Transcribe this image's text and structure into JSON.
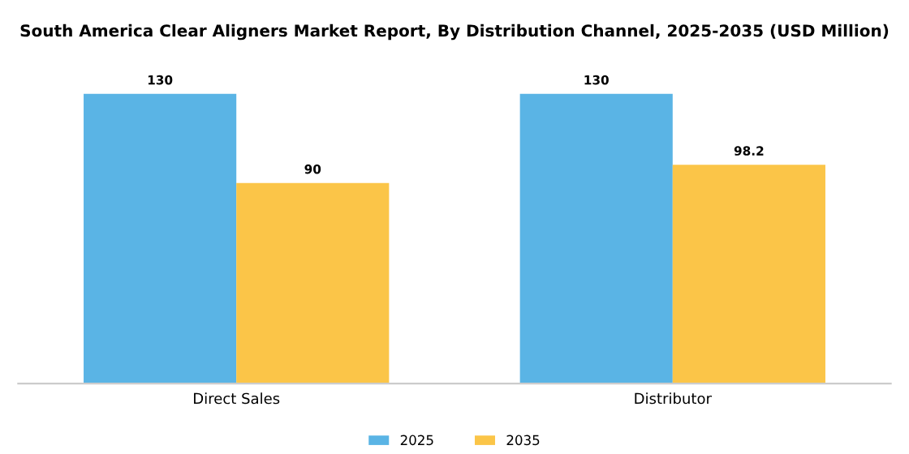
{
  "chart_data": {
    "type": "bar",
    "title": "South America Clear Aligners Market Report, By Distribution Channel, 2025-2035 (USD Million)",
    "categories": [
      "Direct Sales",
      "Distributor"
    ],
    "series": [
      {
        "name": "2025",
        "color": "#5ab4e5",
        "values": [
          130,
          130
        ]
      },
      {
        "name": "2035",
        "color": "#fbc548",
        "values": [
          90,
          98.2
        ]
      }
    ],
    "data_labels": true,
    "legend": "bottom",
    "grid": false
  }
}
